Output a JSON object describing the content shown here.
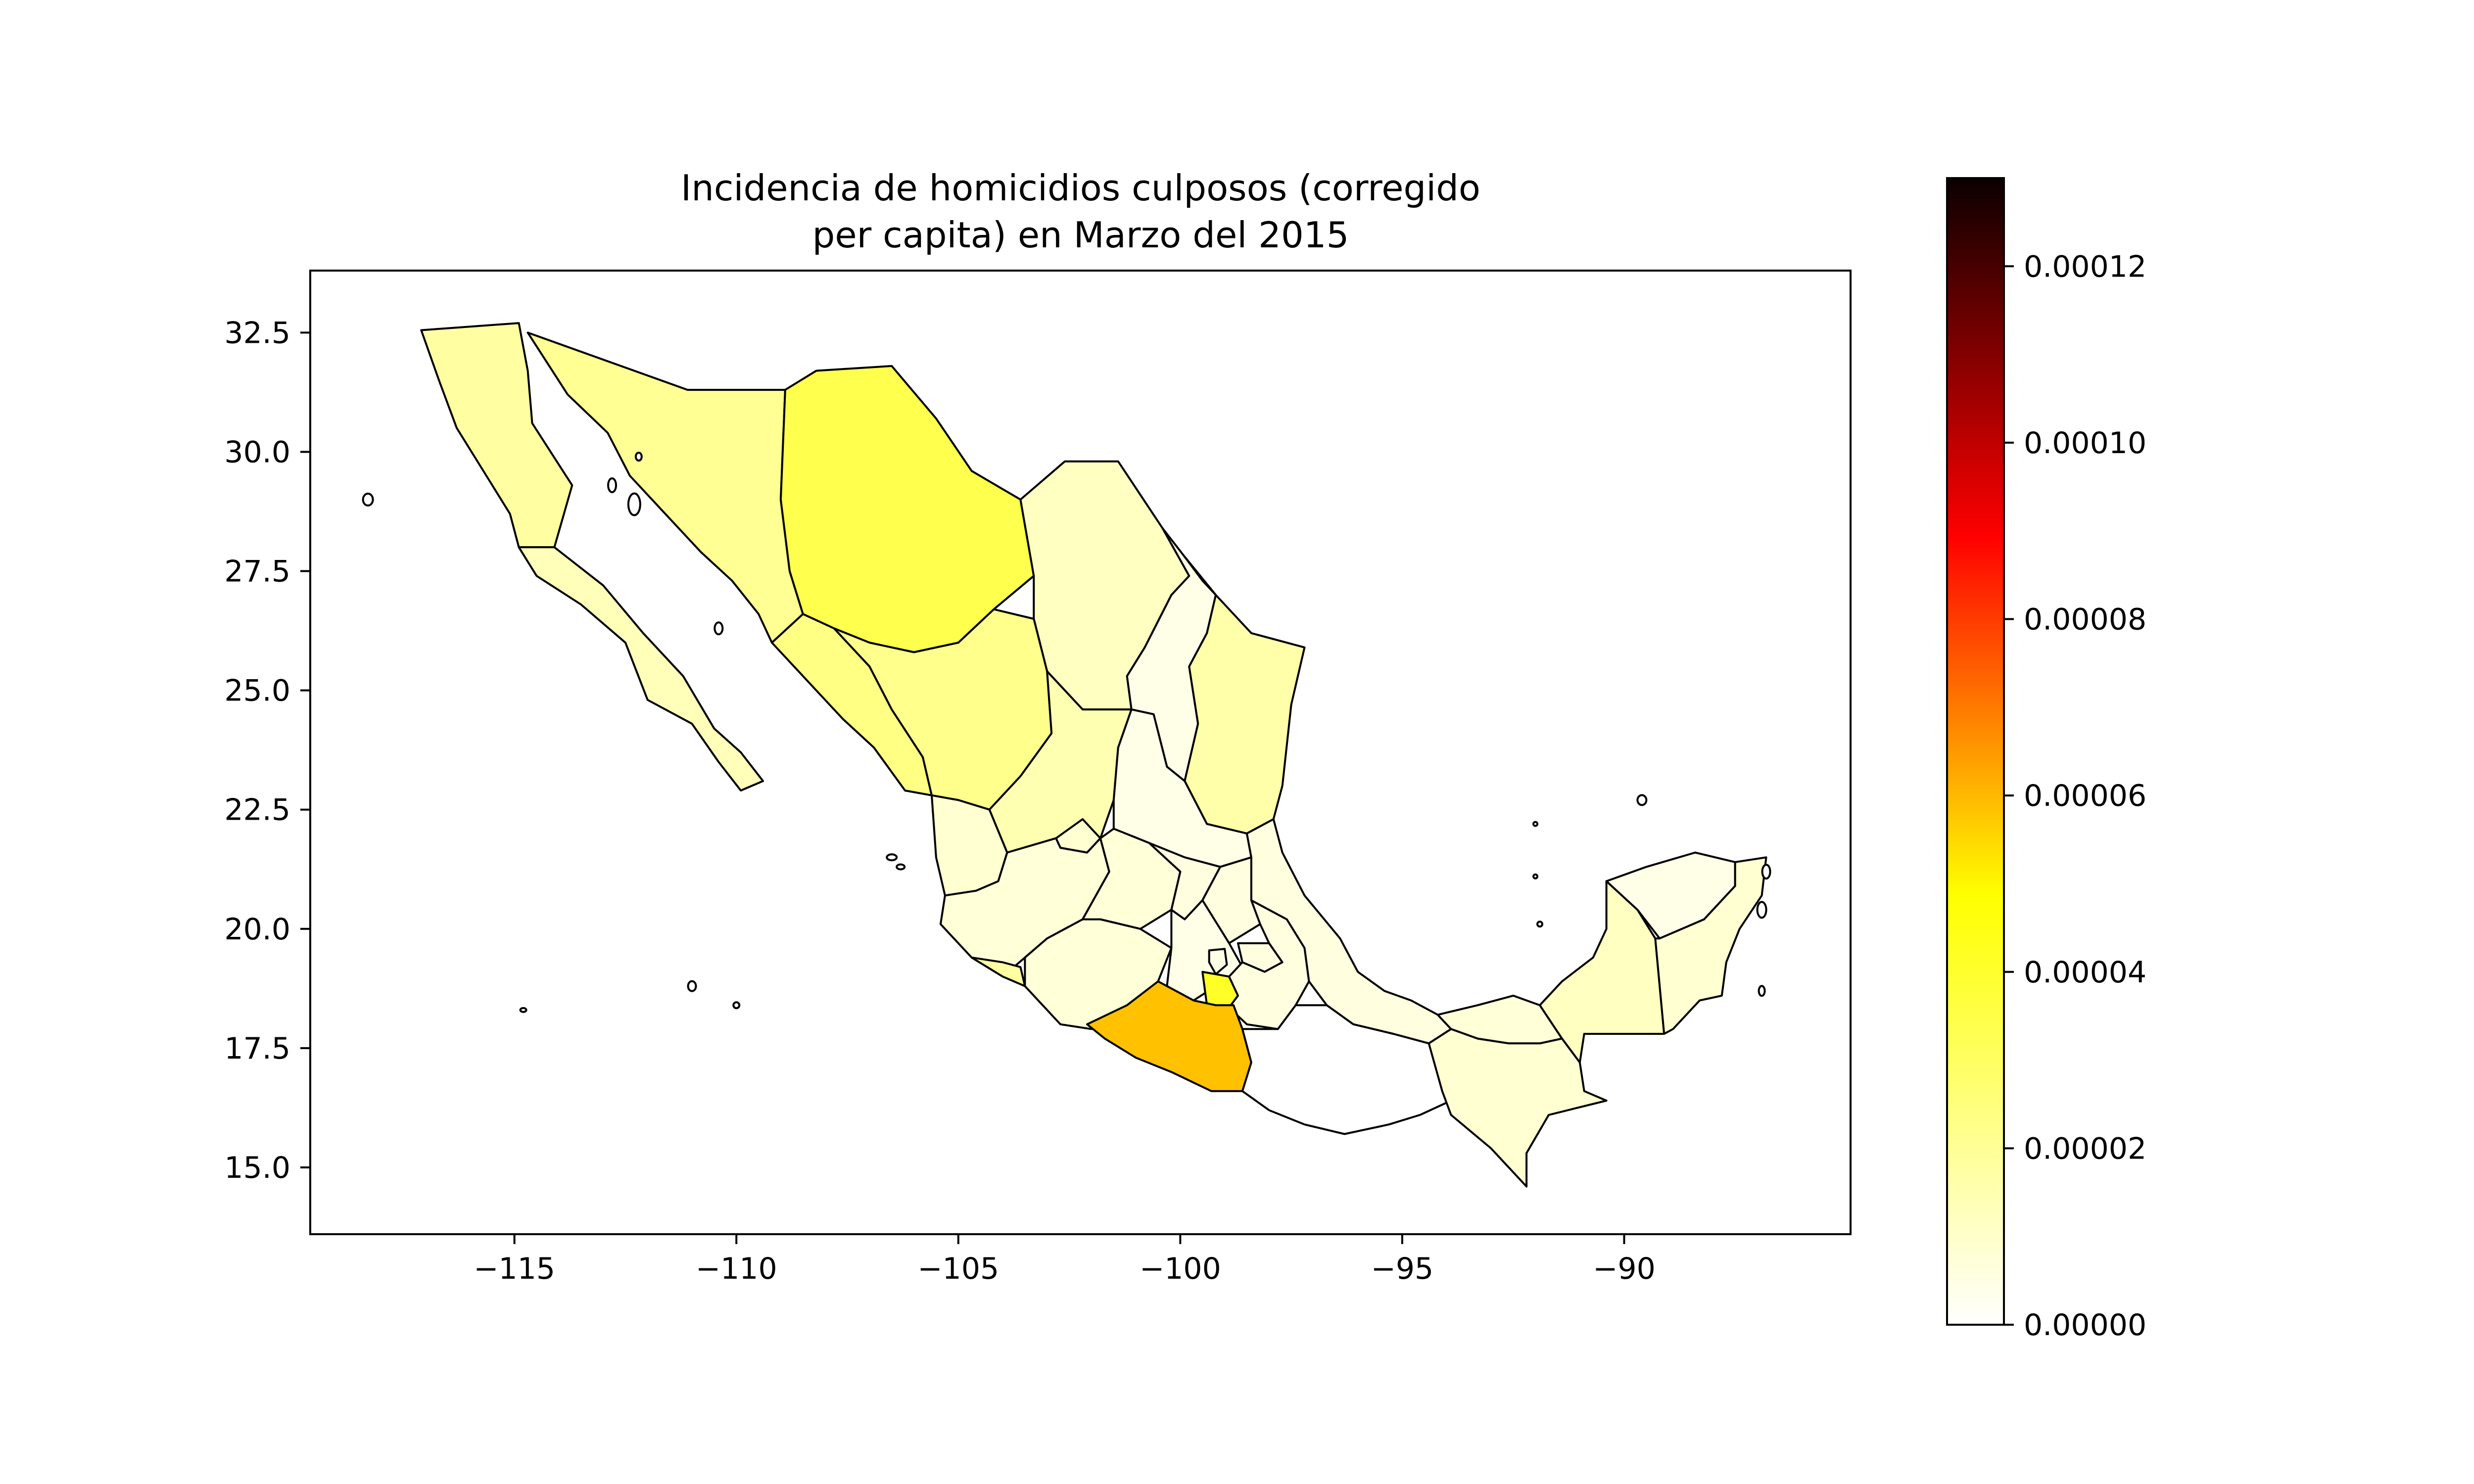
{
  "chart_data": {
    "type": "choropleth",
    "title": [
      "Incidencia de homicidios culposos (corregido",
      "per capita) en Marzo del 2015"
    ],
    "xlabel": "",
    "ylabel": "",
    "xlim": [
      -119.6,
      -84.9
    ],
    "ylim": [
      13.6,
      33.8
    ],
    "x_ticks": [
      -115,
      -110,
      -105,
      -100,
      -95,
      -90
    ],
    "x_tick_labels": [
      "−115",
      "−110",
      "−105",
      "−100",
      "−95",
      "−90"
    ],
    "y_ticks": [
      15.0,
      17.5,
      20.0,
      22.5,
      25.0,
      27.5,
      30.0,
      32.5
    ],
    "y_tick_labels": [
      "15.0",
      "17.5",
      "20.0",
      "22.5",
      "25.0",
      "27.5",
      "30.0",
      "32.5"
    ],
    "colormap": "hot_r",
    "colorbar": {
      "min": 0.0,
      "max": 0.00013,
      "ticks": [
        0.0,
        2e-05,
        4e-05,
        6e-05,
        8e-05,
        0.0001,
        0.00012
      ],
      "tick_labels": [
        "0.00000",
        "0.00002",
        "0.00004",
        "0.00006",
        "0.00008",
        "0.00010",
        "0.00012"
      ]
    },
    "regions": [
      {
        "name": "Baja California",
        "value": 1.2e-05
      },
      {
        "name": "Baja California Sur",
        "value": 9e-06
      },
      {
        "name": "Sonora",
        "value": 1.4e-05
      },
      {
        "name": "Chihuahua",
        "value": 2.3e-05
      },
      {
        "name": "Coahuila",
        "value": 8e-06
      },
      {
        "name": "Nuevo León",
        "value": 3e-06
      },
      {
        "name": "Tamaulipas",
        "value": 1.1e-05
      },
      {
        "name": "Sinaloa",
        "value": 1.6e-05
      },
      {
        "name": "Durango",
        "value": 1.5e-05
      },
      {
        "name": "Zacatecas",
        "value": 1e-05
      },
      {
        "name": "San Luis Potosí",
        "value": 3e-06
      },
      {
        "name": "Nayarit",
        "value": 6e-06
      },
      {
        "name": "Aguascalientes",
        "value": 6e-06
      },
      {
        "name": "Jalisco",
        "value": 5e-06
      },
      {
        "name": "Guanajuato",
        "value": 5e-06
      },
      {
        "name": "Querétaro",
        "value": 4e-06
      },
      {
        "name": "Hidalgo",
        "value": 4e-06
      },
      {
        "name": "Colima",
        "value": 1.2e-05
      },
      {
        "name": "Michoacán",
        "value": 5e-06
      },
      {
        "name": "Estado de México",
        "value": 3e-06
      },
      {
        "name": "Ciudad de México",
        "value": 3e-06
      },
      {
        "name": "Morelos",
        "value": 2.8e-05
      },
      {
        "name": "Tlaxcala",
        "value": 4e-06
      },
      {
        "name": "Puebla",
        "value": 4e-06
      },
      {
        "name": "Veracruz",
        "value": 4e-06
      },
      {
        "name": "Guerrero",
        "value": 4.5e-05
      },
      {
        "name": "Oaxaca",
        "value": 0.0
      },
      {
        "name": "Tabasco",
        "value": 5e-06
      },
      {
        "name": "Chiapas",
        "value": 6e-06
      },
      {
        "name": "Campeche",
        "value": 8e-06
      },
      {
        "name": "Yucatán",
        "value": 3e-06
      },
      {
        "name": "Quintana Roo",
        "value": 6e-06
      }
    ]
  }
}
